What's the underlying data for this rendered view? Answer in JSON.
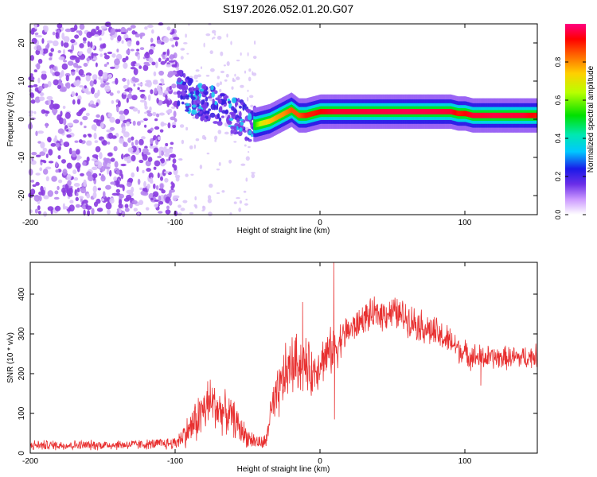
{
  "title": "S197.2026.052.01.20.G07",
  "chart_data": [
    {
      "type": "heatmap",
      "name": "spectrogram",
      "xlabel": "Height of straight line (km)",
      "ylabel": "Frequency (Hz)",
      "xlim": [
        -200,
        150
      ],
      "ylim": [
        -25,
        25
      ],
      "xticks": [
        -200,
        -100,
        0,
        100
      ],
      "yticks": [
        -20,
        -10,
        0,
        10,
        20
      ],
      "colorbar": {
        "label": "Normalized spectral amplitude",
        "range": [
          0,
          1
        ],
        "ticks": [
          0.0,
          0.2,
          0.4,
          0.6,
          0.8
        ],
        "tick_labels": [
          "0.0",
          "0.2",
          "0.4",
          "0.6",
          "0.8"
        ]
      },
      "noise_region": {
        "x_from": -200,
        "x_to": -98,
        "amplitude": 0.15
      },
      "scatter_region": {
        "x_from": -98,
        "x_to": -45,
        "amplitude": 0.3
      },
      "ridge": {
        "x": [
          -100,
          -95,
          -90,
          -85,
          -80,
          -75,
          -70,
          -65,
          -60,
          -55,
          -50,
          -45,
          -40,
          -35,
          -30,
          -25,
          -20,
          -15,
          -10,
          -5,
          0,
          10,
          20,
          40,
          60,
          80,
          90,
          95,
          100,
          105,
          110,
          120,
          140,
          150
        ],
        "freq": [
          9,
          8,
          6,
          5,
          4,
          4.5,
          3,
          2,
          1,
          0.5,
          -1,
          -1.5,
          -1,
          -0.5,
          0.5,
          1.5,
          2.5,
          1,
          1,
          1.5,
          2,
          2,
          2,
          2,
          2,
          2,
          2,
          1.5,
          1.5,
          1,
          1,
          1,
          1,
          1
        ],
        "amplitude": [
          0.35,
          0.4,
          0.45,
          0.45,
          0.4,
          0.35,
          0.35,
          0.3,
          0.3,
          0.25,
          0.3,
          0.55,
          0.7,
          0.75,
          0.78,
          0.8,
          0.85,
          0.85,
          0.9,
          0.9,
          0.92,
          0.95,
          0.95,
          0.96,
          0.97,
          0.96,
          0.95,
          0.9,
          0.92,
          0.95,
          0.95,
          0.96,
          0.95,
          0.9
        ]
      }
    },
    {
      "type": "line",
      "name": "snr",
      "xlabel": "Height of straight line (km)",
      "ylabel": "SNR (10 * v/v)",
      "xlim": [
        -200,
        150
      ],
      "ylim": [
        0,
        480
      ],
      "xticks": [
        -200,
        -100,
        0,
        100
      ],
      "yticks": [
        0,
        100,
        200,
        300,
        400
      ],
      "color": "#e83030",
      "series": [
        {
          "name": "SNR",
          "x": [
            -200,
            -180,
            -160,
            -140,
            -120,
            -100,
            -90,
            -85,
            -80,
            -75,
            -70,
            -65,
            -60,
            -55,
            -50,
            -45,
            -40,
            -37,
            -35,
            -30,
            -25,
            -20,
            -15,
            -10,
            -5,
            0,
            5,
            10,
            15,
            20,
            25,
            30,
            40,
            50,
            60,
            70,
            80,
            90,
            100,
            110,
            120,
            130,
            140,
            150
          ],
          "y": [
            20,
            20,
            20,
            21,
            22,
            25,
            60,
            85,
            110,
            130,
            110,
            100,
            90,
            60,
            40,
            30,
            25,
            30,
            90,
            130,
            190,
            220,
            230,
            220,
            200,
            230,
            250,
            260,
            290,
            310,
            320,
            340,
            350,
            355,
            340,
            320,
            300,
            280,
            250,
            240,
            240,
            240,
            240,
            245
          ],
          "noise": [
            15,
            15,
            15,
            15,
            15,
            20,
            50,
            70,
            80,
            80,
            70,
            60,
            55,
            45,
            30,
            25,
            20,
            25,
            60,
            80,
            90,
            90,
            90,
            85,
            70,
            70,
            70,
            70,
            55,
            50,
            45,
            45,
            50,
            50,
            50,
            50,
            50,
            45,
            40,
            40,
            35,
            35,
            35,
            35
          ]
        }
      ],
      "peaks": [
        {
          "x": 9.5,
          "y": 480
        },
        {
          "x": 10,
          "y": 85
        },
        {
          "x": -12,
          "y": 380
        },
        {
          "x": 111,
          "y": 170
        }
      ]
    }
  ]
}
